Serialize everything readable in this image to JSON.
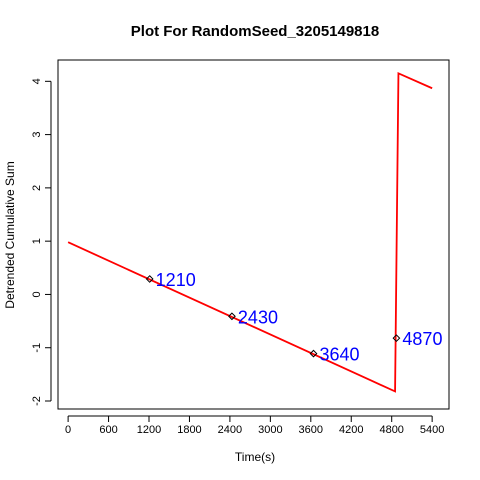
{
  "chart_data": {
    "type": "line",
    "title": "Plot For RandomSeed_3205149818",
    "xlabel": "Time(s)",
    "ylabel": "Detrended Cumulative Sum",
    "xlim": [
      -150,
      5650
    ],
    "ylim": [
      -2.15,
      4.4
    ],
    "x_ticks": [
      0,
      600,
      1200,
      1800,
      2400,
      3000,
      3600,
      4200,
      4800,
      5400
    ],
    "y_ticks": [
      -2,
      -1,
      0,
      1,
      2,
      3,
      4
    ],
    "grid": false,
    "line_color": "#ff0000",
    "series": [
      {
        "x": [
          0,
          4850,
          4900,
          5400
        ],
        "y": [
          0.98,
          -1.82,
          4.15,
          3.87
        ]
      }
    ],
    "markers": [
      {
        "x": 1210,
        "y": 0.29,
        "label": "1210"
      },
      {
        "x": 2430,
        "y": -0.41,
        "label": "2430"
      },
      {
        "x": 3640,
        "y": -1.11,
        "label": "3640"
      },
      {
        "x": 4870,
        "y": -0.82,
        "label": "4870"
      }
    ],
    "annotation_color": "#0000ff"
  }
}
